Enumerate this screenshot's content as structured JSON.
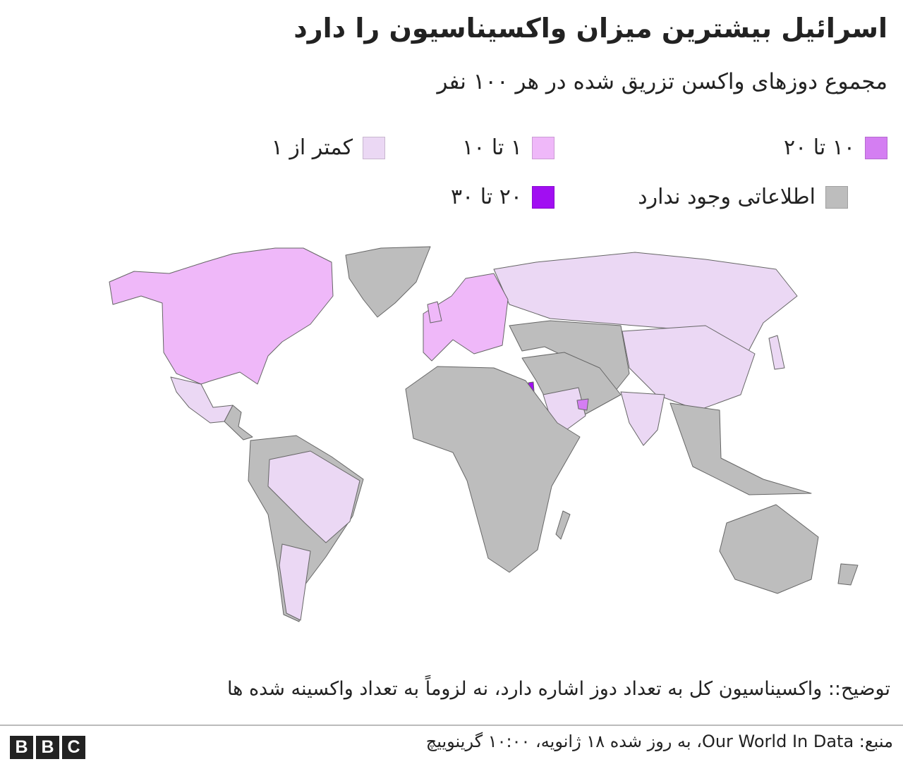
{
  "header": {
    "title": "اسرائیل بیشترین میزان واکسیناسیون را دارد",
    "subtitle": "مجموع دوزهای واکسن تزریق شده در هر ۱۰۰ نفر"
  },
  "legend": [
    {
      "label": "۱۰ تا ۲۰",
      "color": "#d47ef2"
    },
    {
      "label": "۱ تا ۱۰",
      "color": "#efb8f9"
    },
    {
      "label": "کمتر از ۱",
      "color": "#ebd8f4"
    },
    {
      "label": "اطلاعاتی وجود ندارد",
      "color": "#bdbdbd"
    },
    {
      "label": "۲۰ تا ۳۰",
      "color": "#a10ef2"
    }
  ],
  "note": "توضیح:: واکسیناسیون کل به تعداد دوز اشاره دارد، نه لزوماً به تعداد واکسینه شده ها",
  "footer": {
    "source": "منبع: Our World In Data، به روز شده ۱۸ ژانویه، ۱۰:۰۰ گرینوییچ",
    "logo": [
      "B",
      "B",
      "C"
    ]
  }
}
